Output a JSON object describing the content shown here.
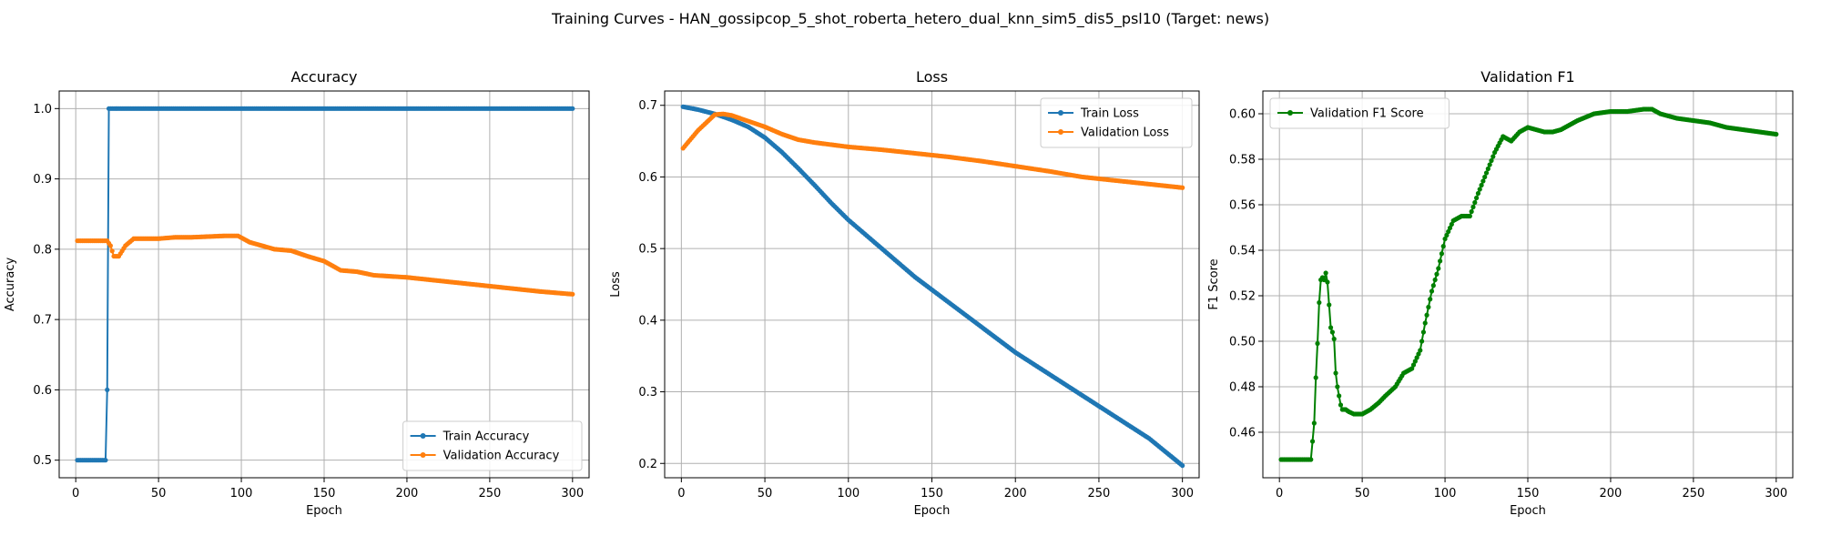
{
  "figure_title": "Training Curves - HAN_gossipcop_5_shot_roberta_hetero_dual_knn_sim5_dis5_psl10 (Target: news)",
  "colors": {
    "train": "#1f77b4",
    "validation": "#ff7f0e",
    "f1": "#008000"
  },
  "chart_data": [
    {
      "type": "line",
      "title": "Accuracy",
      "xlabel": "Epoch",
      "ylabel": "Accuracy",
      "xlim": [
        -10,
        310
      ],
      "ylim": [
        0.475,
        1.025
      ],
      "xticks": [
        0,
        50,
        100,
        150,
        200,
        250,
        300
      ],
      "yticks": [
        0.5,
        0.6,
        0.7,
        0.8,
        0.9,
        1.0
      ],
      "ytick_labels": [
        "0.5",
        "0.6",
        "0.7",
        "0.8",
        "0.9",
        "1.0"
      ],
      "legend": "lower-right",
      "grid": true,
      "series": [
        {
          "name": "Train Accuracy",
          "color_key": "train",
          "points": [
            [
              1,
              0.5
            ],
            [
              18,
              0.5
            ],
            [
              19,
              0.6
            ],
            [
              20,
              1.0
            ],
            [
              300,
              1.0
            ]
          ]
        },
        {
          "name": "Validation Accuracy",
          "color_key": "validation",
          "points": [
            [
              1,
              0.812
            ],
            [
              19,
              0.812
            ],
            [
              21,
              0.805
            ],
            [
              23,
              0.79
            ],
            [
              26,
              0.79
            ],
            [
              30,
              0.805
            ],
            [
              35,
              0.815
            ],
            [
              50,
              0.815
            ],
            [
              60,
              0.817
            ],
            [
              70,
              0.817
            ],
            [
              80,
              0.818
            ],
            [
              90,
              0.819
            ],
            [
              98,
              0.819
            ],
            [
              105,
              0.81
            ],
            [
              120,
              0.8
            ],
            [
              130,
              0.798
            ],
            [
              140,
              0.79
            ],
            [
              150,
              0.783
            ],
            [
              160,
              0.77
            ],
            [
              170,
              0.768
            ],
            [
              180,
              0.763
            ],
            [
              200,
              0.76
            ],
            [
              220,
              0.755
            ],
            [
              240,
              0.75
            ],
            [
              260,
              0.745
            ],
            [
              280,
              0.74
            ],
            [
              300,
              0.736
            ]
          ]
        }
      ]
    },
    {
      "type": "line",
      "title": "Loss",
      "xlabel": "Epoch",
      "ylabel": "Loss",
      "xlim": [
        -10,
        310
      ],
      "ylim": [
        0.18,
        0.72
      ],
      "xticks": [
        0,
        50,
        100,
        150,
        200,
        250,
        300
      ],
      "yticks": [
        0.2,
        0.3,
        0.4,
        0.5,
        0.6,
        0.7
      ],
      "ytick_labels": [
        "0.2",
        "0.3",
        "0.4",
        "0.5",
        "0.6",
        "0.7"
      ],
      "legend": "top-right",
      "grid": true,
      "series": [
        {
          "name": "Train Loss",
          "color_key": "train",
          "points": [
            [
              1,
              0.698
            ],
            [
              10,
              0.694
            ],
            [
              20,
              0.688
            ],
            [
              30,
              0.68
            ],
            [
              40,
              0.67
            ],
            [
              50,
              0.655
            ],
            [
              60,
              0.635
            ],
            [
              70,
              0.612
            ],
            [
              80,
              0.588
            ],
            [
              90,
              0.563
            ],
            [
              100,
              0.54
            ],
            [
              120,
              0.5
            ],
            [
              140,
              0.46
            ],
            [
              160,
              0.425
            ],
            [
              180,
              0.39
            ],
            [
              200,
              0.355
            ],
            [
              220,
              0.325
            ],
            [
              240,
              0.295
            ],
            [
              260,
              0.265
            ],
            [
              280,
              0.235
            ],
            [
              300,
              0.197
            ]
          ]
        },
        {
          "name": "Validation Loss",
          "color_key": "validation",
          "points": [
            [
              1,
              0.64
            ],
            [
              10,
              0.665
            ],
            [
              20,
              0.687
            ],
            [
              25,
              0.688
            ],
            [
              30,
              0.686
            ],
            [
              40,
              0.678
            ],
            [
              50,
              0.67
            ],
            [
              60,
              0.66
            ],
            [
              70,
              0.652
            ],
            [
              80,
              0.648
            ],
            [
              90,
              0.645
            ],
            [
              100,
              0.642
            ],
            [
              120,
              0.638
            ],
            [
              140,
              0.633
            ],
            [
              160,
              0.628
            ],
            [
              180,
              0.622
            ],
            [
              200,
              0.615
            ],
            [
              220,
              0.608
            ],
            [
              240,
              0.6
            ],
            [
              260,
              0.595
            ],
            [
              280,
              0.59
            ],
            [
              300,
              0.585
            ]
          ]
        }
      ]
    },
    {
      "type": "line",
      "title": "Validation F1",
      "xlabel": "Epoch",
      "ylabel": "F1 Score",
      "xlim": [
        -10,
        310
      ],
      "ylim": [
        0.44,
        0.61
      ],
      "xticks": [
        0,
        50,
        100,
        150,
        200,
        250,
        300
      ],
      "yticks": [
        0.46,
        0.48,
        0.5,
        0.52,
        0.54,
        0.56,
        0.58,
        0.6
      ],
      "ytick_labels": [
        "0.46",
        "0.48",
        "0.50",
        "0.52",
        "0.54",
        "0.56",
        "0.58",
        "0.60"
      ],
      "legend": "top-left",
      "grid": true,
      "series": [
        {
          "name": "Validation F1 Score",
          "color_key": "f1",
          "points": [
            [
              1,
              0.448
            ],
            [
              19,
              0.448
            ],
            [
              21,
              0.464
            ],
            [
              22,
              0.484
            ],
            [
              23,
              0.499
            ],
            [
              24,
              0.517
            ],
            [
              25,
              0.527
            ],
            [
              26,
              0.528
            ],
            [
              27,
              0.527
            ],
            [
              28,
              0.53
            ],
            [
              29,
              0.526
            ],
            [
              30,
              0.516
            ],
            [
              31,
              0.506
            ],
            [
              32,
              0.504
            ],
            [
              33,
              0.501
            ],
            [
              34,
              0.486
            ],
            [
              35,
              0.48
            ],
            [
              36,
              0.476
            ],
            [
              37,
              0.472
            ],
            [
              38,
              0.47
            ],
            [
              40,
              0.47
            ],
            [
              42,
              0.469
            ],
            [
              45,
              0.468
            ],
            [
              50,
              0.468
            ],
            [
              55,
              0.47
            ],
            [
              60,
              0.473
            ],
            [
              64,
              0.476
            ],
            [
              70,
              0.48
            ],
            [
              75,
              0.486
            ],
            [
              80,
              0.488
            ],
            [
              85,
              0.496
            ],
            [
              88,
              0.508
            ],
            [
              92,
              0.522
            ],
            [
              96,
              0.532
            ],
            [
              100,
              0.545
            ],
            [
              105,
              0.553
            ],
            [
              110,
              0.555
            ],
            [
              115,
              0.555
            ],
            [
              120,
              0.565
            ],
            [
              125,
              0.574
            ],
            [
              130,
              0.583
            ],
            [
              135,
              0.59
            ],
            [
              140,
              0.588
            ],
            [
              145,
              0.592
            ],
            [
              150,
              0.594
            ],
            [
              155,
              0.593
            ],
            [
              160,
              0.592
            ],
            [
              165,
              0.592
            ],
            [
              170,
              0.593
            ],
            [
              175,
              0.595
            ],
            [
              180,
              0.597
            ],
            [
              190,
              0.6
            ],
            [
              200,
              0.601
            ],
            [
              210,
              0.601
            ],
            [
              220,
              0.602
            ],
            [
              225,
              0.602
            ],
            [
              230,
              0.6
            ],
            [
              240,
              0.598
            ],
            [
              250,
              0.597
            ],
            [
              260,
              0.596
            ],
            [
              270,
              0.594
            ],
            [
              280,
              0.593
            ],
            [
              290,
              0.592
            ],
            [
              300,
              0.591
            ]
          ]
        }
      ]
    }
  ]
}
